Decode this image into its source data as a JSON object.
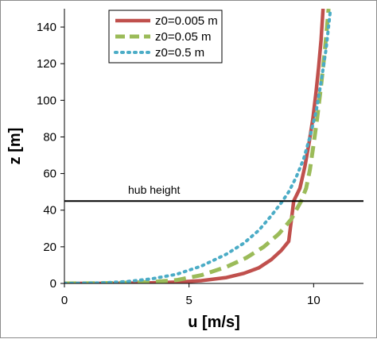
{
  "chart_data": {
    "type": "line",
    "xlabel": "u [m/s]",
    "ylabel": "z [m]",
    "xlim": [
      0,
      12
    ],
    "ylim": [
      0,
      150
    ],
    "x_ticks": [
      "0",
      "5",
      "10"
    ],
    "x_tick_values": [
      0,
      5,
      10
    ],
    "y_ticks": [
      "0",
      "20",
      "40",
      "60",
      "80",
      "100",
      "120",
      "140"
    ],
    "y_tick_values": [
      0,
      20,
      40,
      60,
      80,
      100,
      120,
      140
    ],
    "grid": false,
    "legend_position": "top-center",
    "series": [
      {
        "name": "z0=0.005 m",
        "color": "#c0504d",
        "style": "solid",
        "x": [
          0,
          2,
          3.5,
          4.5,
          5.5,
          6.5,
          7.2,
          7.8,
          8.3,
          8.7,
          9.0,
          9.2,
          9.45,
          9.65,
          9.82,
          9.97,
          10.1,
          10.2,
          10.3,
          10.38
        ],
        "y": [
          0,
          0.05,
          0.3,
          0.7,
          1.5,
          3.2,
          5.5,
          8.5,
          13,
          18,
          23,
          45,
          52,
          64,
          77,
          90,
          105,
          118,
          133,
          150
        ]
      },
      {
        "name": "z0=0.05 m",
        "color": "#9bbb59",
        "style": "dashed",
        "x": [
          0,
          2,
          3.5,
          4.5,
          5.5,
          6.5,
          7.3,
          8.0,
          8.6,
          9.1,
          9.5,
          9.7,
          9.85,
          10.0,
          10.15,
          10.3,
          10.45,
          10.6
        ],
        "y": [
          0,
          0.2,
          0.8,
          1.8,
          4.5,
          9,
          14,
          20,
          27,
          35,
          45,
          52,
          62,
          76,
          91,
          108,
          127,
          150
        ]
      },
      {
        "name": "z0=0.5 m",
        "color": "#4bacc6",
        "style": "dotted",
        "x": [
          0,
          1.5,
          2.5,
          3.5,
          4.5,
          5.5,
          6.5,
          7.2,
          7.8,
          8.3,
          8.7,
          9.0,
          9.3,
          9.6,
          9.85,
          10.1,
          10.3,
          10.5,
          10.68
        ],
        "y": [
          0,
          0.3,
          1.0,
          2.5,
          5,
          9.5,
          16,
          22,
          29,
          37,
          44,
          50,
          58,
          68,
          80,
          94,
          110,
          128,
          150
        ]
      }
    ],
    "reference_line": {
      "label": "hub height",
      "y": 45
    }
  }
}
